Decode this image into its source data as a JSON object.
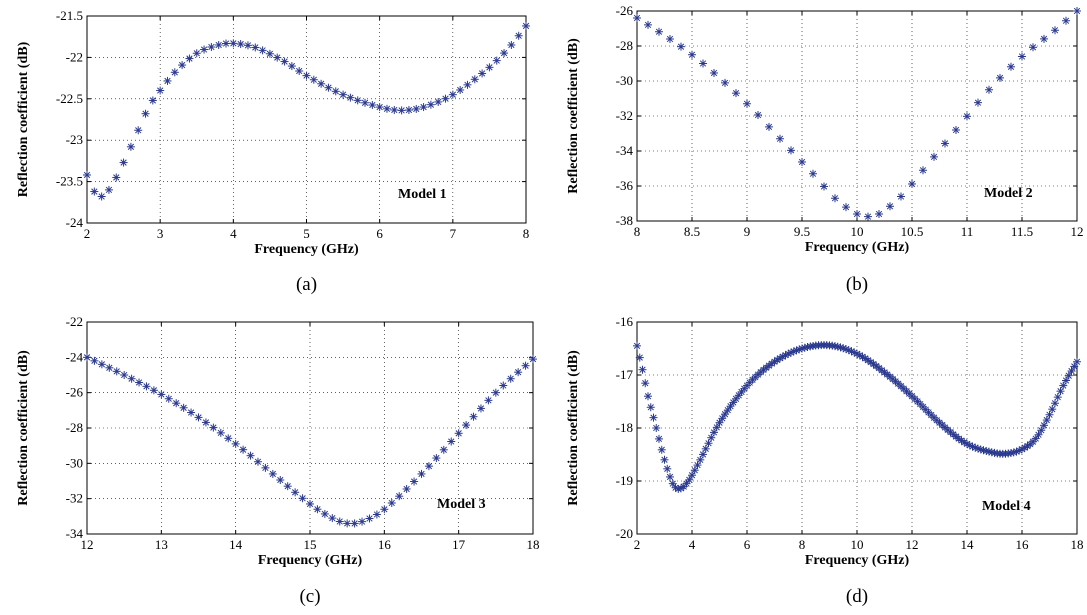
{
  "colors": {
    "marker": "#2b3a8f"
  },
  "chart_data": [
    {
      "type": "scatter",
      "caption": "(a)",
      "model_label": "Model 1",
      "xlabel": "Frequency (GHz)",
      "ylabel": "Reflection coefficient (dB)",
      "xlim": [
        2,
        8
      ],
      "ylim": [
        -24,
        -21.5
      ],
      "xticks": [
        2,
        3,
        4,
        5,
        6,
        7,
        8
      ],
      "yticks": [
        -24,
        -23.5,
        -23,
        -22.5,
        -22,
        -21.5
      ],
      "xtick_labels": [
        "2",
        "3",
        "4",
        "5",
        "6",
        "7",
        "8"
      ],
      "ytick_labels": [
        "-24",
        "-23.5",
        "-23",
        "-22.5",
        "-22",
        "-21.5"
      ],
      "grid": true,
      "marker": "asterisk",
      "x_range": [
        2,
        8
      ],
      "n_points": 61,
      "key_points": [
        [
          2.0,
          -23.42
        ],
        [
          2.1,
          -23.62
        ],
        [
          2.2,
          -23.68
        ],
        [
          2.3,
          -23.6
        ],
        [
          2.4,
          -23.45
        ],
        [
          2.5,
          -23.27
        ],
        [
          2.6,
          -23.08
        ],
        [
          2.7,
          -22.88
        ],
        [
          2.8,
          -22.68
        ],
        [
          2.9,
          -22.52
        ],
        [
          3.0,
          -22.4
        ],
        [
          3.2,
          -22.18
        ],
        [
          3.5,
          -21.95
        ],
        [
          3.8,
          -21.85
        ],
        [
          4.0,
          -21.83
        ],
        [
          4.3,
          -21.88
        ],
        [
          4.7,
          -22.05
        ],
        [
          5.0,
          -22.22
        ],
        [
          5.5,
          -22.45
        ],
        [
          6.0,
          -22.6
        ],
        [
          6.3,
          -22.64
        ],
        [
          6.6,
          -22.6
        ],
        [
          7.0,
          -22.45
        ],
        [
          7.5,
          -22.12
        ],
        [
          7.8,
          -21.85
        ],
        [
          8.0,
          -21.62
        ]
      ]
    },
    {
      "type": "scatter",
      "caption": "(b)",
      "model_label": "Model 2",
      "xlabel": "Frequency (GHz)",
      "ylabel": "Reflection coefficient (dB)",
      "xlim": [
        8,
        12
      ],
      "ylim": [
        -38,
        -26
      ],
      "xticks": [
        8,
        8.5,
        9,
        9.5,
        10,
        10.5,
        11,
        11.5,
        12
      ],
      "yticks": [
        -38,
        -36,
        -34,
        -32,
        -30,
        -28,
        -26
      ],
      "xtick_labels": [
        "8",
        "8.5",
        "9",
        "9.5",
        "10",
        "10.5",
        "11",
        "11.5",
        "12"
      ],
      "ytick_labels": [
        "-38",
        "-36",
        "-34",
        "-32",
        "-30",
        "-28",
        "-26"
      ],
      "grid": true,
      "marker": "asterisk",
      "x_range": [
        8,
        12
      ],
      "n_points": 41,
      "key_points": [
        [
          8.0,
          -26.4
        ],
        [
          8.3,
          -27.6
        ],
        [
          8.6,
          -29.0
        ],
        [
          9.0,
          -31.3
        ],
        [
          9.3,
          -33.3
        ],
        [
          9.6,
          -35.3
        ],
        [
          9.8,
          -36.7
        ],
        [
          10.0,
          -37.6
        ],
        [
          10.1,
          -37.75
        ],
        [
          10.2,
          -37.6
        ],
        [
          10.4,
          -36.6
        ],
        [
          10.6,
          -35.1
        ],
        [
          10.9,
          -32.8
        ],
        [
          11.2,
          -30.5
        ],
        [
          11.5,
          -28.6
        ],
        [
          11.8,
          -27.1
        ],
        [
          12.0,
          -26.0
        ]
      ]
    },
    {
      "type": "scatter",
      "caption": "(c)",
      "model_label": "Model 3",
      "xlabel": "Frequency (GHz)",
      "ylabel": "Reflection coefficient (dB)",
      "xlim": [
        12,
        18
      ],
      "ylim": [
        -34,
        -22
      ],
      "xticks": [
        12,
        13,
        14,
        15,
        16,
        17,
        18
      ],
      "yticks": [
        -34,
        -32,
        -30,
        -28,
        -26,
        -24,
        -22
      ],
      "xtick_labels": [
        "12",
        "13",
        "14",
        "15",
        "16",
        "17",
        "18"
      ],
      "ytick_labels": [
        "-34",
        "-32",
        "-30",
        "-28",
        "-26",
        "-24",
        "-22"
      ],
      "grid": true,
      "marker": "asterisk",
      "x_range": [
        12,
        18
      ],
      "n_points": 61,
      "key_points": [
        [
          12.0,
          -24.0
        ],
        [
          12.5,
          -25.0
        ],
        [
          13.0,
          -26.1
        ],
        [
          13.5,
          -27.4
        ],
        [
          14.0,
          -28.9
        ],
        [
          14.5,
          -30.6
        ],
        [
          15.0,
          -32.3
        ],
        [
          15.3,
          -33.1
        ],
        [
          15.5,
          -33.4
        ],
        [
          15.7,
          -33.3
        ],
        [
          16.0,
          -32.6
        ],
        [
          16.5,
          -30.6
        ],
        [
          17.0,
          -28.3
        ],
        [
          17.5,
          -26.0
        ],
        [
          18.0,
          -24.1
        ]
      ]
    },
    {
      "type": "scatter",
      "caption": "(d)",
      "model_label": "Model 4",
      "xlabel": "Frequency (GHz)",
      "ylabel": "Reflection coefficient (dB)",
      "xlim": [
        2,
        18
      ],
      "ylim": [
        -20,
        -16
      ],
      "xticks": [
        2,
        4,
        6,
        8,
        10,
        12,
        14,
        16,
        18
      ],
      "yticks": [
        -20,
        -19,
        -18,
        -17,
        -16
      ],
      "xtick_labels": [
        "2",
        "4",
        "6",
        "8",
        "10",
        "12",
        "14",
        "16",
        "18"
      ],
      "ytick_labels": [
        "-20",
        "-19",
        "-18",
        "-17",
        "-16"
      ],
      "grid": true,
      "marker": "asterisk",
      "x_range": [
        2,
        18
      ],
      "n_points": 161,
      "key_points": [
        [
          2.0,
          -16.45
        ],
        [
          2.2,
          -16.9
        ],
        [
          2.4,
          -17.4
        ],
        [
          2.7,
          -18.0
        ],
        [
          3.0,
          -18.6
        ],
        [
          3.3,
          -19.05
        ],
        [
          3.5,
          -19.15
        ],
        [
          3.8,
          -19.05
        ],
        [
          4.2,
          -18.7
        ],
        [
          5.0,
          -17.9
        ],
        [
          6.0,
          -17.2
        ],
        [
          7.0,
          -16.75
        ],
        [
          8.0,
          -16.5
        ],
        [
          9.0,
          -16.44
        ],
        [
          10.0,
          -16.6
        ],
        [
          11.0,
          -16.95
        ],
        [
          12.0,
          -17.4
        ],
        [
          13.0,
          -17.9
        ],
        [
          14.0,
          -18.3
        ],
        [
          15.0,
          -18.47
        ],
        [
          15.5,
          -18.48
        ],
        [
          16.0,
          -18.4
        ],
        [
          16.5,
          -18.2
        ],
        [
          17.0,
          -17.75
        ],
        [
          17.5,
          -17.2
        ],
        [
          18.0,
          -16.75
        ]
      ]
    }
  ]
}
